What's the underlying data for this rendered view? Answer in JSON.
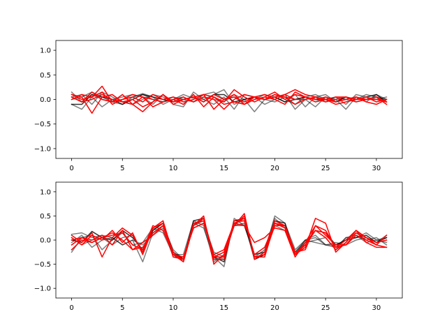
{
  "chart_data": [
    {
      "type": "line",
      "title": "",
      "xlabel": "",
      "ylabel": "",
      "xlim": [
        -1.55,
        32.55
      ],
      "ylim": [
        -1.2,
        1.2
      ],
      "grid": false,
      "x_ticks": [
        0,
        5,
        10,
        15,
        20,
        25,
        30
      ],
      "x_tick_labels": [
        "0",
        "5",
        "10",
        "15",
        "20",
        "25",
        "30"
      ],
      "y_ticks": [
        1.0,
        0.5,
        0.0,
        -0.5,
        -1.0
      ],
      "y_tick_labels": [
        "1.0",
        "0.5",
        "0.0",
        "−0.5",
        "−1.0"
      ],
      "x": [
        0,
        1,
        2,
        3,
        4,
        5,
        6,
        7,
        8,
        9,
        10,
        11,
        12,
        13,
        14,
        15,
        16,
        17,
        18,
        19,
        20,
        21,
        22,
        23,
        24,
        25,
        26,
        27,
        28,
        29,
        30,
        31
      ],
      "series": [
        {
          "color": "#000000",
          "alpha": 0.5,
          "values": [
            0.15,
            -0.05,
            0.1,
            0.0,
            -0.05,
            -0.1,
            0.05,
            0.12,
            0.05,
            -0.1,
            0.0,
            0.1,
            0.02,
            0.0,
            0.1,
            0.2,
            -0.1,
            0.0,
            -0.25,
            0.0,
            0.1,
            0.0,
            -0.1,
            0.05,
            0.1,
            0.0,
            0.05,
            -0.1,
            0.1,
            0.05,
            0.0,
            0.05
          ]
        },
        {
          "color": "#000000",
          "alpha": 0.5,
          "values": [
            -0.1,
            -0.2,
            0.05,
            -0.15,
            0.0,
            0.05,
            0.1,
            0.05,
            -0.1,
            0.1,
            -0.1,
            -0.15,
            0.15,
            0.0,
            -0.1,
            0.05,
            -0.2,
            0.1,
            0.05,
            -0.1,
            0.0,
            0.1,
            -0.2,
            0.0,
            -0.15,
            0.05,
            0.0,
            -0.2,
            0.05,
            -0.05,
            0.1,
            0.0
          ]
        },
        {
          "color": "#000000",
          "alpha": 0.5,
          "values": [
            0.05,
            0.1,
            -0.1,
            0.15,
            0.05,
            -0.05,
            -0.1,
            0.0,
            0.1,
            0.05,
            -0.05,
            0.05,
            -0.05,
            0.1,
            0.15,
            0.0,
            0.05,
            -0.1,
            0.0,
            0.1,
            0.05,
            -0.05,
            0.1,
            -0.15,
            0.05,
            0.1,
            -0.05,
            0.05,
            0.0,
            0.1,
            0.05,
            -0.05
          ]
        },
        {
          "color": "#000000",
          "alpha": 0.5,
          "values": [
            0.0,
            0.05,
            0.15,
            0.05,
            -0.05,
            0.0,
            0.05,
            0.1,
            0.0,
            -0.05,
            0.05,
            0.0,
            -0.05,
            0.05,
            0.0,
            -0.05,
            0.1,
            0.0,
            0.05,
            0.0,
            -0.05,
            0.05,
            0.0,
            0.05,
            0.0,
            -0.05,
            0.05,
            0.0,
            -0.05,
            0.0,
            0.05,
            0.0
          ]
        },
        {
          "color": "#000000",
          "alpha": 0.8,
          "values": [
            -0.1,
            -0.1,
            0.1,
            0.05,
            0.0,
            -0.1,
            0.0,
            0.1,
            0.05,
            0.0,
            -0.05,
            0.0,
            0.05,
            -0.05,
            0.1,
            0.1,
            -0.05,
            0.0,
            0.05,
            0.0,
            0.05,
            -0.05,
            0.0,
            0.05,
            0.0,
            0.0,
            -0.05,
            0.05,
            0.0,
            0.05,
            0.1,
            -0.05
          ]
        },
        {
          "color": "#ff0000",
          "alpha": 1.0,
          "values": [
            0.1,
            0.05,
            -0.28,
            0.05,
            0.1,
            -0.05,
            0.0,
            -0.15,
            -0.05,
            0.1,
            -0.1,
            0.0,
            0.05,
            -0.05,
            0.1,
            0.0,
            0.1,
            -0.1,
            0.05,
            0.0,
            0.1,
            0.05,
            -0.1,
            0.0,
            0.05,
            -0.05,
            0.0,
            0.05,
            -0.05,
            0.0,
            0.05,
            -0.05
          ]
        },
        {
          "color": "#ff0000",
          "alpha": 1.0,
          "values": [
            0.05,
            -0.05,
            0.15,
            0.0,
            -0.05,
            0.1,
            -0.1,
            0.05,
            -0.15,
            -0.05,
            0.0,
            -0.1,
            0.1,
            -0.15,
            0.05,
            -0.05,
            0.2,
            0.05,
            -0.05,
            0.05,
            0.0,
            -0.1,
            0.15,
            0.05,
            0.0,
            0.05,
            -0.05,
            0.0,
            0.05,
            -0.05,
            -0.1,
            0.0
          ]
        },
        {
          "color": "#ff0000",
          "alpha": 1.0,
          "values": [
            0.1,
            0.0,
            0.05,
            0.27,
            -0.05,
            0.0,
            0.05,
            -0.05,
            0.1,
            0.0,
            0.05,
            -0.05,
            0.0,
            0.1,
            -0.2,
            0.0,
            0.05,
            -0.05,
            0.05,
            0.1,
            0.0,
            0.1,
            0.2,
            0.1,
            0.05,
            0.0,
            0.05,
            0.05,
            0.0,
            0.0,
            0.05,
            -0.1
          ]
        },
        {
          "color": "#ff0000",
          "alpha": 1.0,
          "values": [
            0.05,
            -0.05,
            0.0,
            0.1,
            0.0,
            -0.05,
            -0.1,
            -0.25,
            -0.05,
            0.1,
            -0.05,
            0.0,
            0.05,
            0.1,
            0.05,
            -0.1,
            -0.05,
            -0.1,
            0.0,
            0.05,
            0.15,
            0.0,
            0.1,
            0.05,
            -0.05,
            0.0,
            -0.1,
            -0.05,
            0.0,
            0.05,
            -0.05,
            0.0
          ]
        },
        {
          "color": "#ff0000",
          "alpha": 1.0,
          "values": [
            0.0,
            0.1,
            0.05,
            0.15,
            -0.1,
            0.0,
            0.1,
            0.05,
            0.0,
            -0.05,
            0.0,
            0.05,
            -0.05,
            0.05,
            0.0,
            -0.2,
            0.0,
            0.1,
            0.05,
            0.0,
            0.05,
            0.1,
            0.0,
            0.0,
            0.05,
            0.0,
            -0.05,
            0.0,
            0.05,
            0.0,
            0.0,
            -0.05
          ]
        }
      ]
    },
    {
      "type": "line",
      "title": "",
      "xlabel": "",
      "ylabel": "",
      "xlim": [
        -1.55,
        32.55
      ],
      "ylim": [
        -1.2,
        1.2
      ],
      "grid": false,
      "x_ticks": [
        0,
        5,
        10,
        15,
        20,
        25,
        30
      ],
      "x_tick_labels": [
        "0",
        "5",
        "10",
        "15",
        "20",
        "25",
        "30"
      ],
      "y_ticks": [
        1.0,
        0.5,
        0.0,
        -0.5,
        -1.0
      ],
      "y_tick_labels": [
        "1.0",
        "0.5",
        "0.0",
        "−0.5",
        "−1.0"
      ],
      "x": [
        0,
        1,
        2,
        3,
        4,
        5,
        6,
        7,
        8,
        9,
        10,
        11,
        12,
        13,
        14,
        15,
        16,
        17,
        18,
        19,
        20,
        21,
        22,
        23,
        24,
        25,
        26,
        27,
        28,
        29,
        30,
        31
      ],
      "series": [
        {
          "color": "#000000",
          "alpha": 0.5,
          "values": [
            0.12,
            0.15,
            0.05,
            0.1,
            0.05,
            -0.1,
            0.0,
            -0.45,
            0.15,
            0.3,
            -0.2,
            -0.4,
            0.35,
            0.25,
            -0.35,
            -0.55,
            0.45,
            0.3,
            -0.3,
            -0.25,
            0.5,
            0.35,
            -0.2,
            0.0,
            0.1,
            -0.1,
            -0.15,
            0.05,
            0.05,
            0.15,
            0.0,
            0.05
          ]
        },
        {
          "color": "#000000",
          "alpha": 0.5,
          "values": [
            -0.25,
            0.05,
            0.1,
            -0.2,
            0.0,
            0.15,
            -0.1,
            -0.05,
            0.25,
            0.15,
            -0.3,
            -0.3,
            0.4,
            0.3,
            -0.45,
            -0.3,
            0.3,
            0.35,
            -0.4,
            -0.3,
            0.4,
            0.3,
            -0.3,
            0.0,
            0.05,
            -0.1,
            -0.05,
            -0.1,
            0.0,
            0.05,
            -0.05,
            0.1
          ]
        },
        {
          "color": "#000000",
          "alpha": 0.5,
          "values": [
            0.05,
            -0.1,
            0.0,
            0.05,
            -0.1,
            0.05,
            0.1,
            -0.25,
            0.2,
            0.35,
            -0.3,
            -0.4,
            0.3,
            0.4,
            -0.3,
            -0.4,
            0.35,
            0.4,
            -0.35,
            -0.2,
            0.45,
            0.25,
            -0.25,
            -0.05,
            0.0,
            0.05,
            -0.2,
            0.05,
            0.1,
            -0.05,
            0.0,
            -0.05
          ]
        },
        {
          "color": "#000000",
          "alpha": 0.5,
          "values": [
            -0.05,
            0.1,
            -0.15,
            0.0,
            0.05,
            -0.1,
            0.0,
            -0.1,
            0.1,
            0.25,
            -0.35,
            -0.35,
            0.25,
            0.35,
            -0.25,
            -0.35,
            0.3,
            0.3,
            -0.3,
            -0.25,
            0.3,
            0.2,
            -0.25,
            0.0,
            -0.05,
            -0.1,
            -0.1,
            0.0,
            0.15,
            0.0,
            0.05,
            -0.1
          ]
        },
        {
          "color": "#000000",
          "alpha": 0.8,
          "values": [
            0.0,
            -0.05,
            0.18,
            0.05,
            0.0,
            0.2,
            0.05,
            -0.2,
            0.2,
            0.35,
            -0.25,
            -0.4,
            0.4,
            0.45,
            -0.35,
            -0.45,
            0.4,
            0.45,
            -0.4,
            -0.3,
            0.4,
            0.35,
            -0.3,
            -0.1,
            0.2,
            0.15,
            -0.1,
            0.0,
            0.05,
            0.1,
            -0.05,
            0.05
          ]
        },
        {
          "color": "#ff0000",
          "alpha": 1.0,
          "values": [
            0.1,
            -0.05,
            0.15,
            -0.35,
            0.05,
            0.25,
            0.1,
            -0.25,
            0.25,
            0.4,
            -0.3,
            -0.45,
            0.3,
            0.5,
            -0.5,
            -0.3,
            0.3,
            0.55,
            -0.4,
            -0.25,
            0.4,
            0.3,
            -0.3,
            -0.15,
            0.45,
            0.35,
            -0.25,
            -0.05,
            0.2,
            -0.05,
            -0.15,
            -0.15
          ]
        },
        {
          "color": "#ff0000",
          "alpha": 1.0,
          "values": [
            -0.2,
            0.0,
            -0.05,
            0.05,
            0.15,
            0.0,
            -0.2,
            -0.15,
            0.15,
            0.3,
            -0.25,
            -0.45,
            0.3,
            0.45,
            -0.4,
            -0.4,
            0.35,
            0.45,
            -0.35,
            -0.35,
            0.35,
            0.25,
            -0.3,
            -0.1,
            0.2,
            0.05,
            -0.2,
            -0.05,
            0.2,
            0.05,
            -0.1,
            0.1
          ]
        },
        {
          "color": "#ff0000",
          "alpha": 1.0,
          "values": [
            0.05,
            -0.1,
            0.1,
            0.0,
            0.2,
            -0.05,
            0.15,
            -0.3,
            0.25,
            0.35,
            -0.35,
            -0.4,
            0.35,
            0.4,
            -0.35,
            -0.25,
            0.3,
            0.5,
            -0.35,
            -0.3,
            0.3,
            0.3,
            -0.25,
            -0.2,
            0.3,
            0.2,
            -0.15,
            -0.1,
            0.1,
            0.0,
            -0.1,
            -0.15
          ]
        },
        {
          "color": "#ff0000",
          "alpha": 1.0,
          "values": [
            -0.1,
            0.05,
            0.0,
            0.1,
            -0.1,
            0.2,
            -0.2,
            -0.05,
            0.1,
            0.3,
            -0.3,
            -0.35,
            0.25,
            0.35,
            -0.3,
            -0.2,
            0.35,
            0.3,
            -0.05,
            0.05,
            0.25,
            0.2,
            -0.35,
            -0.05,
            0.2,
            0.15,
            -0.15,
            0.0,
            0.2,
            0.05,
            -0.05,
            0.0
          ]
        },
        {
          "color": "#ff0000",
          "alpha": 1.0,
          "values": [
            0.0,
            0.05,
            -0.05,
            0.05,
            0.1,
            0.15,
            -0.1,
            -0.2,
            0.3,
            0.2,
            -0.3,
            -0.4,
            0.3,
            0.45,
            -0.35,
            -0.35,
            0.4,
            0.4,
            -0.3,
            -0.15,
            0.35,
            0.3,
            -0.3,
            -0.05,
            0.3,
            0.1,
            -0.1,
            -0.1,
            0.15,
            0.05,
            -0.05,
            0.0
          ]
        }
      ]
    }
  ]
}
